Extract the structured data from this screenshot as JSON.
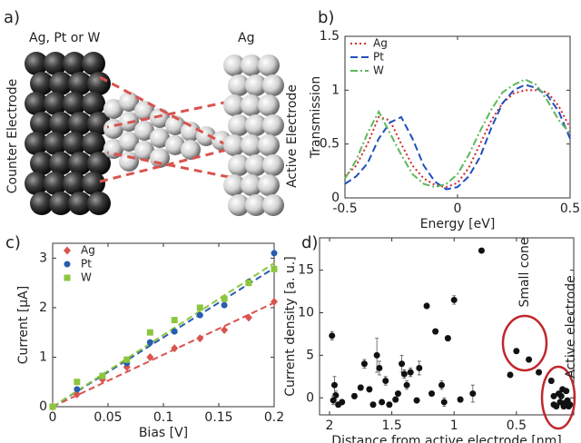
{
  "illustration": {
    "panel_label": "a)",
    "left_metal": "Ag, Pt or W",
    "right_metal": "Ag",
    "left_electrode": "Counter Electrode",
    "right_electrode": "Active Electrode"
  },
  "chart_data": [
    {
      "type": "line",
      "panel_label": "b)",
      "x_label": "Energy [eV]",
      "y_label": "Transmission",
      "x": [
        -0.5,
        -0.45,
        -0.4,
        -0.35,
        -0.3,
        -0.25,
        -0.2,
        -0.15,
        -0.1,
        -0.05,
        0,
        0.05,
        0.1,
        0.15,
        0.2,
        0.25,
        0.3,
        0.35,
        0.4,
        0.45,
        0.5
      ],
      "series": [
        {
          "name": "Ag",
          "color": "#d62728",
          "linestyle": "dotted",
          "values": [
            0.2,
            0.3,
            0.5,
            0.75,
            0.72,
            0.5,
            0.3,
            0.18,
            0.12,
            0.1,
            0.14,
            0.28,
            0.5,
            0.72,
            0.88,
            0.97,
            1.0,
            1.0,
            0.98,
            0.85,
            0.65
          ]
        },
        {
          "name": "Pt",
          "color": "#1f4fbf",
          "linestyle": "dashed",
          "values": [
            0.13,
            0.2,
            0.32,
            0.55,
            0.7,
            0.75,
            0.55,
            0.3,
            0.15,
            0.08,
            0.1,
            0.2,
            0.38,
            0.65,
            0.88,
            1.0,
            1.05,
            1.02,
            0.95,
            0.8,
            0.55
          ]
        },
        {
          "name": "W",
          "color": "#5cb85c",
          "linestyle": "dashdot",
          "values": [
            0.18,
            0.35,
            0.6,
            0.8,
            0.6,
            0.4,
            0.22,
            0.13,
            0.1,
            0.13,
            0.22,
            0.4,
            0.62,
            0.82,
            0.98,
            1.05,
            1.1,
            1.05,
            0.9,
            0.72,
            0.6
          ]
        }
      ],
      "xlim": [
        -0.5,
        0.5
      ],
      "ylim": [
        0,
        1.5
      ],
      "xticks": [
        -0.5,
        0,
        0.5
      ],
      "yticks": [
        0,
        0.5,
        1,
        1.5
      ],
      "legend": "upper left"
    },
    {
      "type": "scatter",
      "panel_label": "c)",
      "x_label": "Bias [V]",
      "y_label": "Current [μA]",
      "series": [
        {
          "name": "Ag",
          "color": "#d9534f",
          "marker": "diamond",
          "x": [
            0,
            0.022,
            0.045,
            0.067,
            0.088,
            0.11,
            0.133,
            0.155,
            0.177,
            0.2
          ],
          "values": [
            0,
            0.25,
            0.55,
            0.8,
            1.0,
            1.18,
            1.38,
            1.55,
            1.8,
            2.12
          ]
        },
        {
          "name": "Pt",
          "color": "#2a5db0",
          "marker": "circle",
          "x": [
            0,
            0.022,
            0.045,
            0.067,
            0.088,
            0.11,
            0.133,
            0.155,
            0.177,
            0.2
          ],
          "values": [
            0,
            0.35,
            0.62,
            0.88,
            1.3,
            1.52,
            1.85,
            2.05,
            2.52,
            3.1
          ]
        },
        {
          "name": "W",
          "color": "#8cc63f",
          "marker": "square",
          "x": [
            0,
            0.022,
            0.045,
            0.067,
            0.088,
            0.11,
            0.133,
            0.155,
            0.177,
            0.2
          ],
          "values": [
            0,
            0.5,
            0.62,
            0.95,
            1.5,
            1.75,
            2.0,
            2.18,
            2.5,
            2.78
          ]
        }
      ],
      "fits": [
        {
          "color": "#d9534f",
          "x": [
            0,
            0.2
          ],
          "values": [
            0,
            2.1
          ]
        },
        {
          "color": "#2a5db0",
          "x": [
            0,
            0.2
          ],
          "values": [
            0,
            2.8
          ]
        },
        {
          "color": "#8cc63f",
          "x": [
            0,
            0.2
          ],
          "values": [
            0,
            2.9
          ]
        }
      ],
      "xlim": [
        0,
        0.2
      ],
      "ylim": [
        0,
        3.3
      ],
      "xticks": [
        0,
        0.05,
        0.1,
        0.15,
        0.2
      ],
      "yticks": [
        0,
        1,
        2,
        3
      ],
      "legend": "upper left"
    },
    {
      "type": "scatter",
      "panel_label": "d)",
      "x_label": "Distance from active electrode [nm]",
      "y_label": "Current density [a. u.]",
      "series": [
        {
          "color": "#111111",
          "marker": "circle",
          "x": [
            1.98,
            1.96,
            1.95,
            1.93,
            1.9,
            1.97,
            1.8,
            1.75,
            1.72,
            1.68,
            1.65,
            1.62,
            1.6,
            1.58,
            1.55,
            1.52,
            1.47,
            1.45,
            1.42,
            1.4,
            1.38,
            1.35,
            1.3,
            1.28,
            1.22,
            1.18,
            1.15,
            1.1,
            1.08,
            1.05,
            1.0,
            0.95,
            0.85,
            0.78,
            0.55,
            0.5,
            0.4,
            0.32,
            0.22,
            0.2,
            0.18,
            0.16,
            0.15,
            0.14,
            0.12,
            0.11,
            0.1,
            0.09,
            0.08,
            0.07,
            0.2,
            0.13
          ],
          "values": [
            7.3,
            1.5,
            0.3,
            -0.8,
            -0.5,
            -0.3,
            0.2,
            1.2,
            4.0,
            1.0,
            -0.8,
            5.0,
            3.5,
            -0.5,
            2.0,
            -0.8,
            -0.2,
            0.5,
            4.0,
            2.8,
            1.5,
            3.0,
            -0.3,
            3.5,
            10.8,
            0.5,
            7.8,
            1.5,
            -0.5,
            7.0,
            11.5,
            -0.2,
            0.5,
            17.3,
            2.7,
            5.5,
            4.5,
            3.0,
            2.0,
            -0.8,
            -1.0,
            0.5,
            -0.5,
            0.2,
            -1.0,
            -0.6,
            0.8,
            -0.3,
            -1.0,
            -0.8,
            0.2,
            1.0
          ],
          "errors": [
            0.5,
            1.0,
            0.5,
            0.3,
            0.3,
            0.5,
            0.3,
            0.3,
            0.5,
            0.3,
            0.3,
            2.0,
            0.8,
            0.3,
            0.5,
            0.3,
            0.3,
            0.3,
            1.0,
            0.5,
            0.5,
            0.5,
            0.3,
            0.8,
            0.3,
            0.3,
            0.3,
            0.5,
            0.5,
            0.3,
            0.5,
            0.3,
            1.0,
            0.2,
            0.3,
            0.3,
            0.3,
            0.3,
            0.3,
            0.2,
            0.2,
            0.2,
            0.2,
            0.2,
            0.2,
            0.2,
            0.2,
            0.2,
            0.2,
            0.2,
            0.2,
            0.2
          ]
        }
      ],
      "annotations": [
        "Small cone",
        "Active electrode"
      ],
      "xlim": [
        2.08,
        0.04
      ],
      "ylim": [
        -2,
        18.8
      ],
      "xticks": [
        2,
        1.5,
        1,
        0.5
      ],
      "yticks": [
        0,
        5,
        10,
        15
      ]
    }
  ]
}
